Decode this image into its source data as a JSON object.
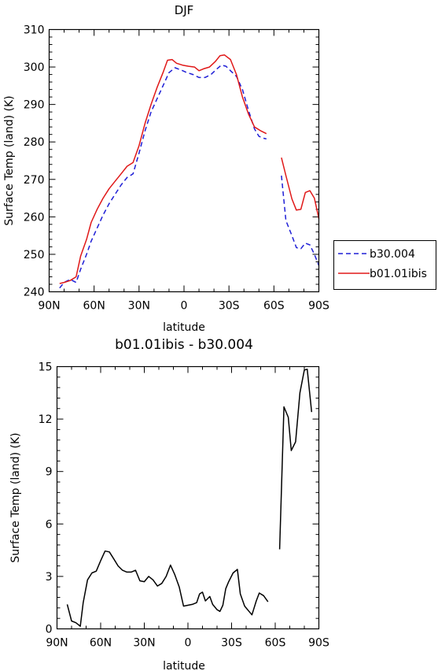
{
  "chart_data": [
    {
      "type": "line",
      "title": "DJF",
      "xlabel": "latitude",
      "ylabel": "Surface Temp (land) (K)",
      "xlim": [
        -90,
        90
      ],
      "ylim": [
        240,
        310
      ],
      "x_ticks": [
        {
          "v": -90,
          "label": "90N"
        },
        {
          "v": -60,
          "label": "60N"
        },
        {
          "v": -30,
          "label": "30N"
        },
        {
          "v": 0,
          "label": "0"
        },
        {
          "v": 30,
          "label": "30S"
        },
        {
          "v": 60,
          "label": "60S"
        },
        {
          "v": 90,
          "label": "90S"
        }
      ],
      "y_ticks": [
        {
          "v": 240,
          "label": "240"
        },
        {
          "v": 250,
          "label": "250"
        },
        {
          "v": 260,
          "label": "260"
        },
        {
          "v": 270,
          "label": "270"
        },
        {
          "v": 280,
          "label": "280"
        },
        {
          "v": 290,
          "label": "290"
        },
        {
          "v": 300,
          "label": "300"
        },
        {
          "v": 310,
          "label": "310"
        }
      ],
      "legend": "right",
      "series": [
        {
          "name": "b30.004",
          "color": "#1f1fd6",
          "dash": "dashed",
          "segments": [
            [
              [
                -83,
                241
              ],
              [
                -80,
                242.5
              ],
              [
                -76,
                243.3
              ],
              [
                -72,
                242.5
              ],
              [
                -69,
                246
              ],
              [
                -65,
                250
              ],
              [
                -62,
                253.5
              ],
              [
                -58,
                257
              ],
              [
                -54,
                260.5
              ],
              [
                -50,
                263.5
              ],
              [
                -46,
                266
              ],
              [
                -42,
                268.5
              ],
              [
                -38,
                270.5
              ],
              [
                -34,
                271.5
              ],
              [
                -30,
                277
              ],
              [
                -26,
                283
              ],
              [
                -22,
                288
              ],
              [
                -18,
                291.5
              ],
              [
                -14,
                295
              ],
              [
                -10,
                298.5
              ],
              [
                -6,
                299.8
              ],
              [
                -2,
                299.2
              ],
              [
                2,
                298.5
              ],
              [
                6,
                298
              ],
              [
                10,
                297.2
              ],
              [
                14,
                297.2
              ],
              [
                18,
                298
              ],
              [
                22,
                299.5
              ],
              [
                25,
                300.5
              ],
              [
                28,
                300.2
              ],
              [
                31,
                299
              ],
              [
                35,
                297.5
              ],
              [
                39,
                294
              ],
              [
                43,
                288.5
              ],
              [
                47,
                283.5
              ],
              [
                50,
                281.5
              ],
              [
                53,
                281
              ],
              [
                55,
                280.8
              ]
            ],
            [
              [
                65,
                271
              ],
              [
                68,
                259
              ],
              [
                72,
                255
              ],
              [
                75,
                251.8
              ],
              [
                78,
                251.5
              ],
              [
                81,
                253
              ],
              [
                84,
                252.5
              ],
              [
                87,
                250
              ],
              [
                90,
                247
              ]
            ]
          ]
        },
        {
          "name": "b01.01ibis",
          "color": "#e01818",
          "dash": "solid",
          "segments": [
            [
              [
                -83,
                242.2
              ],
              [
                -80,
                242.5
              ],
              [
                -76,
                243
              ],
              [
                -72,
                244
              ],
              [
                -69,
                249.5
              ],
              [
                -65,
                254
              ],
              [
                -62,
                258.5
              ],
              [
                -58,
                262
              ],
              [
                -54,
                265
              ],
              [
                -50,
                267.5
              ],
              [
                -46,
                269.5
              ],
              [
                -42,
                271.5
              ],
              [
                -38,
                273.5
              ],
              [
                -34,
                274.5
              ],
              [
                -30,
                279
              ],
              [
                -26,
                285
              ],
              [
                -22,
                290
              ],
              [
                -18,
                294.5
              ],
              [
                -14,
                298.5
              ],
              [
                -11,
                301.8
              ],
              [
                -8,
                302
              ],
              [
                -5,
                301
              ],
              [
                -1,
                300.5
              ],
              [
                3,
                300.2
              ],
              [
                7,
                300
              ],
              [
                10,
                299
              ],
              [
                13,
                299.5
              ],
              [
                17,
                300
              ],
              [
                21,
                301.5
              ],
              [
                24,
                303
              ],
              [
                27,
                303.2
              ],
              [
                31,
                302
              ],
              [
                35,
                298
              ],
              [
                39,
                292
              ],
              [
                43,
                287.5
              ],
              [
                47,
                284
              ],
              [
                51,
                283
              ],
              [
                55,
                282.2
              ]
            ],
            [
              [
                65,
                275.8
              ],
              [
                68,
                271
              ],
              [
                72,
                264.8
              ],
              [
                75,
                261.8
              ],
              [
                78,
                262
              ],
              [
                81,
                266.5
              ],
              [
                84,
                267
              ],
              [
                87,
                265
              ],
              [
                90,
                259.5
              ]
            ]
          ]
        }
      ]
    },
    {
      "type": "line",
      "title": "b01.01ibis - b30.004",
      "xlabel": "latitude",
      "ylabel": "Surface Temp (land) (K)",
      "xlim": [
        -90,
        90
      ],
      "ylim": [
        0,
        15
      ],
      "x_ticks": [
        {
          "v": -90,
          "label": "90N"
        },
        {
          "v": -60,
          "label": "60N"
        },
        {
          "v": -30,
          "label": "30N"
        },
        {
          "v": 0,
          "label": "0"
        },
        {
          "v": 30,
          "label": "30S"
        },
        {
          "v": 60,
          "label": "60S"
        },
        {
          "v": 90,
          "label": "90S"
        }
      ],
      "y_ticks": [
        {
          "v": 0,
          "label": "0"
        },
        {
          "v": 3,
          "label": "3"
        },
        {
          "v": 6,
          "label": "6"
        },
        {
          "v": 9,
          "label": "9"
        },
        {
          "v": 12,
          "label": "12"
        },
        {
          "v": 15,
          "label": "15"
        }
      ],
      "series": [
        {
          "color": "#000000",
          "dash": "solid",
          "segments": [
            [
              [
                -83,
                1.4
              ],
              [
                -80,
                0.45
              ],
              [
                -77,
                0.35
              ],
              [
                -74,
                0.15
              ],
              [
                -72,
                1.5
              ],
              [
                -69,
                2.8
              ],
              [
                -66,
                3.2
              ],
              [
                -63,
                3.3
              ],
              [
                -60,
                3.9
              ],
              [
                -57,
                4.45
              ],
              [
                -54,
                4.4
              ],
              [
                -51,
                4
              ],
              [
                -48,
                3.6
              ],
              [
                -45,
                3.35
              ],
              [
                -42,
                3.25
              ],
              [
                -39,
                3.25
              ],
              [
                -36,
                3.35
              ],
              [
                -33,
                2.75
              ],
              [
                -30,
                2.7
              ],
              [
                -27,
                3.0
              ],
              [
                -24,
                2.8
              ],
              [
                -21,
                2.45
              ],
              [
                -18,
                2.6
              ],
              [
                -15,
                3.0
              ],
              [
                -12,
                3.65
              ],
              [
                -9,
                3.1
              ],
              [
                -6,
                2.4
              ],
              [
                -3,
                1.3
              ],
              [
                0,
                1.35
              ],
              [
                3,
                1.4
              ],
              [
                6,
                1.5
              ],
              [
                8,
                2.0
              ],
              [
                10,
                2.1
              ],
              [
                12,
                1.6
              ],
              [
                15,
                1.85
              ],
              [
                17,
                1.4
              ],
              [
                20,
                1.1
              ],
              [
                22,
                1.0
              ],
              [
                24,
                1.35
              ],
              [
                26,
                2.3
              ],
              [
                28,
                2.7
              ],
              [
                31,
                3.2
              ],
              [
                34,
                3.4
              ],
              [
                36,
                2.0
              ],
              [
                39,
                1.3
              ],
              [
                42,
                1.0
              ],
              [
                44,
                0.8
              ],
              [
                47,
                1.6
              ],
              [
                49,
                2.05
              ],
              [
                52,
                1.9
              ],
              [
                55,
                1.55
              ]
            ],
            [
              [
                63,
                4.55
              ],
              [
                66,
                12.7
              ],
              [
                69,
                12.1
              ],
              [
                71,
                10.2
              ],
              [
                74,
                10.7
              ],
              [
                77,
                13.5
              ],
              [
                80,
                14.8
              ],
              [
                82,
                14.85
              ],
              [
                85,
                12.4
              ]
            ]
          ]
        }
      ]
    }
  ]
}
